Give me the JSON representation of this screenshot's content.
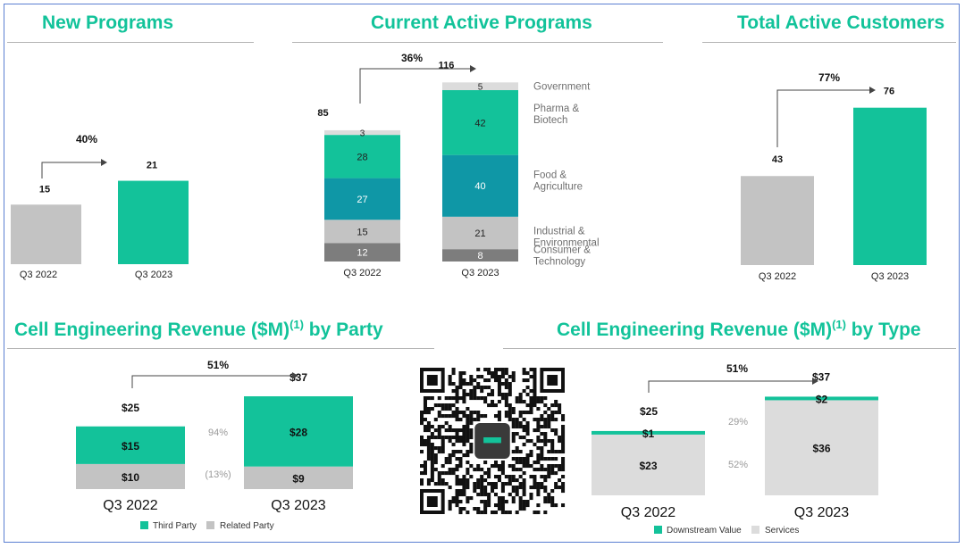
{
  "colors": {
    "teal": "#13c29a",
    "dark_teal": "#0f97a6",
    "gray": "#c3c3c3",
    "mid_gray": "#9b9b9b",
    "dark_gray": "#7d7d7d",
    "light_gray": "#dcdcdc",
    "title_green": "#12c39a",
    "label_gray": "#6f6f6f"
  },
  "panels": {
    "new_programs": {
      "title": "New Programs"
    },
    "current_active": {
      "title": "Current Active Programs"
    },
    "total_customers": {
      "title": "Total Active Customers"
    },
    "by_party": {
      "title": "Cell Engineering Revenue ($M)",
      "title_sup": "(1)",
      "title_suffix": "by Party"
    },
    "by_type": {
      "title": "Cell Engineering Revenue ($M)",
      "title_sup": "(1)",
      "title_suffix": "by Type"
    }
  },
  "qr_icon": "qr-code-icon",
  "chart_data": [
    {
      "id": "new_programs",
      "type": "bar",
      "categories": [
        "Q3 2022",
        "Q3 2023"
      ],
      "values": [
        15,
        21
      ],
      "growth_label": "40%",
      "ylim": [
        0,
        30
      ]
    },
    {
      "id": "current_active",
      "type": "bar",
      "stacked": true,
      "categories": [
        "Q3 2022",
        "Q3 2023"
      ],
      "series": [
        {
          "name": "Consumer & Technology",
          "label_lines": [
            "Consumer &",
            "Technology"
          ],
          "values": [
            12,
            8
          ],
          "color": "#7d7d7d",
          "text_color": "#ffffff"
        },
        {
          "name": "Industrial & Environmental",
          "label_lines": [
            "Industrial &",
            "Environmental"
          ],
          "values": [
            15,
            21
          ],
          "color": "#c3c3c3",
          "text_color": "#222222"
        },
        {
          "name": "Food & Agriculture",
          "label_lines": [
            "Food &",
            "Agriculture"
          ],
          "values": [
            27,
            40
          ],
          "color": "#0f97a6",
          "text_color": "#ffffff"
        },
        {
          "name": "Pharma & Biotech",
          "label_lines": [
            "Pharma &",
            "Biotech"
          ],
          "values": [
            28,
            42
          ],
          "color": "#13c29a",
          "text_color": "#222222"
        },
        {
          "name": "Government",
          "label_lines": [
            "Government"
          ],
          "values": [
            3,
            5
          ],
          "color": "#dcdcdc",
          "text_color": "#222222"
        }
      ],
      "totals": [
        85,
        116
      ],
      "growth_label": "36%"
    },
    {
      "id": "total_customers",
      "type": "bar",
      "categories": [
        "Q3 2022",
        "Q3 2023"
      ],
      "values": [
        43,
        76
      ],
      "growth_label": "77%",
      "ylim": [
        0,
        95
      ]
    },
    {
      "id": "by_party",
      "type": "bar",
      "stacked": true,
      "categories": [
        "Q3 2022",
        "Q3 2023"
      ],
      "series": [
        {
          "name": "Related Party",
          "values": [
            10,
            9
          ],
          "value_labels": [
            "$10",
            "$9"
          ],
          "color": "#c3c3c3"
        },
        {
          "name": "Third Party",
          "values": [
            15,
            28
          ],
          "value_labels": [
            "$15",
            "$28"
          ],
          "color": "#13c29a"
        }
      ],
      "totals": [
        "$25",
        "$37"
      ],
      "growth_label": "51%",
      "series_growth": [
        {
          "name": "Third Party",
          "label": "94%"
        },
        {
          "name": "Related Party",
          "label": "(13%)"
        }
      ],
      "legend": [
        "Third Party",
        "Related Party"
      ]
    },
    {
      "id": "by_type",
      "type": "bar",
      "stacked": true,
      "categories": [
        "Q3 2022",
        "Q3 2023"
      ],
      "series": [
        {
          "name": "Services",
          "values": [
            23,
            36
          ],
          "value_labels": [
            "$23",
            "$36"
          ],
          "color": "#dcdcdc"
        },
        {
          "name": "Downstream Value",
          "values": [
            1,
            2
          ],
          "value_labels": [
            "$1",
            "$2"
          ],
          "color": "#13c29a"
        }
      ],
      "totals": [
        "$25",
        "$37"
      ],
      "growth_label": "51%",
      "series_growth": [
        {
          "name": "Downstream Value",
          "label": "29%"
        },
        {
          "name": "Services",
          "label": "52%"
        }
      ],
      "legend": [
        "Downstream Value",
        "Services"
      ]
    }
  ]
}
